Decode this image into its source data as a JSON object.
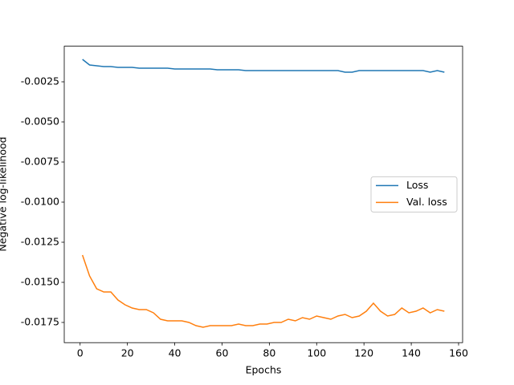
{
  "chart_data": {
    "type": "line",
    "xlabel": "Epochs",
    "ylabel": "Negative log-likelihood",
    "x": [
      1,
      4,
      7,
      10,
      13,
      16,
      19,
      22,
      25,
      28,
      31,
      34,
      37,
      40,
      43,
      46,
      49,
      52,
      55,
      58,
      61,
      64,
      67,
      70,
      73,
      76,
      79,
      82,
      85,
      88,
      91,
      94,
      97,
      100,
      103,
      106,
      109,
      112,
      115,
      118,
      121,
      124,
      127,
      130,
      133,
      136,
      139,
      142,
      145,
      148,
      151,
      154
    ],
    "series": [
      {
        "name": "Loss",
        "color": "#1f77b4",
        "values": [
          -0.0011,
          -0.00145,
          -0.0015,
          -0.00155,
          -0.00155,
          -0.0016,
          -0.0016,
          -0.0016,
          -0.00165,
          -0.00165,
          -0.00165,
          -0.00165,
          -0.00165,
          -0.0017,
          -0.0017,
          -0.0017,
          -0.0017,
          -0.0017,
          -0.0017,
          -0.00175,
          -0.00175,
          -0.00175,
          -0.00175,
          -0.0018,
          -0.0018,
          -0.0018,
          -0.0018,
          -0.0018,
          -0.0018,
          -0.0018,
          -0.0018,
          -0.0018,
          -0.0018,
          -0.0018,
          -0.0018,
          -0.0018,
          -0.0018,
          -0.0019,
          -0.0019,
          -0.0018,
          -0.0018,
          -0.0018,
          -0.0018,
          -0.0018,
          -0.0018,
          -0.0018,
          -0.0018,
          -0.0018,
          -0.0018,
          -0.0019,
          -0.0018,
          -0.0019
        ]
      },
      {
        "name": "Val. loss",
        "color": "#ff7f0e",
        "values": [
          -0.0133,
          -0.0146,
          -0.0154,
          -0.0156,
          -0.0156,
          -0.0161,
          -0.0164,
          -0.0166,
          -0.0167,
          -0.0167,
          -0.0169,
          -0.0173,
          -0.0174,
          -0.0174,
          -0.0174,
          -0.0175,
          -0.0177,
          -0.0178,
          -0.0177,
          -0.0177,
          -0.0177,
          -0.0177,
          -0.0176,
          -0.0177,
          -0.0177,
          -0.0176,
          -0.0176,
          -0.0175,
          -0.0175,
          -0.0173,
          -0.0174,
          -0.0172,
          -0.0173,
          -0.0171,
          -0.0172,
          -0.0173,
          -0.0171,
          -0.017,
          -0.0172,
          -0.0171,
          -0.0168,
          -0.0163,
          -0.0168,
          -0.0171,
          -0.017,
          -0.0166,
          -0.0169,
          -0.0168,
          -0.0166,
          -0.0169,
          -0.0167,
          -0.0168
        ]
      }
    ],
    "xlim": [
      -6.7,
      161.7
    ],
    "ylim": [
      -0.01876,
      -0.00028
    ],
    "xticks": [
      0,
      20,
      40,
      60,
      80,
      100,
      120,
      140,
      160
    ],
    "yticks": [
      -0.0025,
      {
        "value": -0.005,
        "label": "-0.0050"
      },
      -0.0075,
      {
        "value": -0.01,
        "label": "-0.0100"
      },
      -0.0125,
      {
        "value": -0.015,
        "label": "-0.0150"
      },
      -0.0175
    ],
    "legend": "center right"
  }
}
